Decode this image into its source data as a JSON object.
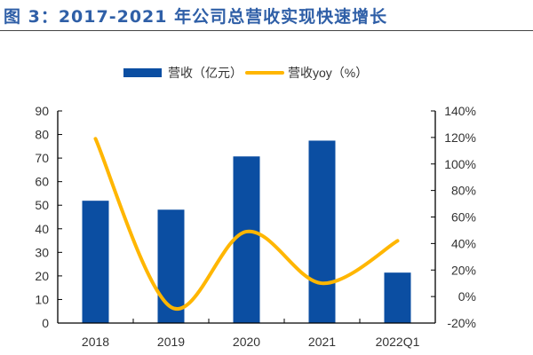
{
  "title": "图 3：2017-2021 年公司总营收实现快速增长",
  "chart_data": {
    "type": "bar+line",
    "categories": [
      "2018",
      "2019",
      "2020",
      "2021",
      "2022Q1"
    ],
    "series": [
      {
        "name": "营收（亿元）",
        "type": "bar",
        "axis": "left",
        "color": "#0b4ea2",
        "values": [
          51.9,
          48.1,
          70.7,
          77.4,
          21.4
        ]
      },
      {
        "name": "营收yoy（%）",
        "type": "line",
        "axis": "right",
        "color": "#ffb600",
        "values": [
          119,
          -8,
          49,
          10,
          42
        ]
      }
    ],
    "left_axis": {
      "ylim": [
        0,
        90
      ],
      "ticks": [
        0,
        10,
        20,
        30,
        40,
        50,
        60,
        70,
        80,
        90
      ]
    },
    "right_axis": {
      "ylim": [
        -20,
        140
      ],
      "ticks": [
        "-20%",
        "0%",
        "20%",
        "40%",
        "60%",
        "80%",
        "100%",
        "120%",
        "140%"
      ]
    },
    "legend": "top-center",
    "grid": false
  }
}
